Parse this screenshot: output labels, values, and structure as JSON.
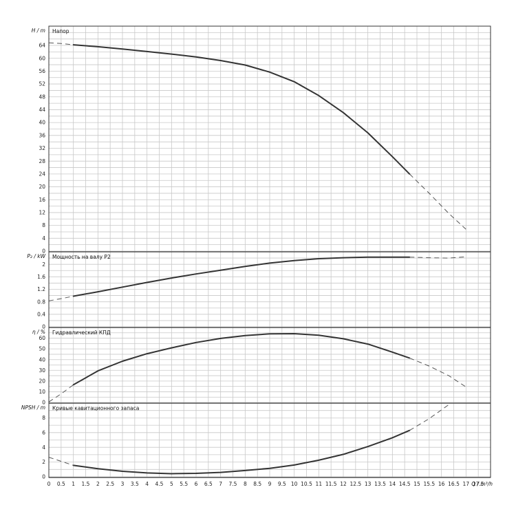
{
  "chart_data": [
    {
      "type": "line",
      "id": "head",
      "title": "Напор",
      "ylabel": "H / m",
      "ylim": [
        0,
        70
      ],
      "yticks": [
        0,
        4,
        8,
        12,
        16,
        20,
        24,
        28,
        32,
        36,
        40,
        44,
        48,
        52,
        56,
        60,
        64
      ],
      "series": [
        {
          "style": "solid",
          "x": [
            1,
            2,
            3,
            4,
            5,
            6,
            7,
            8,
            9,
            10,
            11,
            12,
            13,
            14,
            14.7
          ],
          "y": [
            64.2,
            63.6,
            62.9,
            62.1,
            61.3,
            60.4,
            59.3,
            57.9,
            55.7,
            52.7,
            48.4,
            43.1,
            36.8,
            29.4,
            24
          ]
        },
        {
          "style": "dashed",
          "x": [
            0,
            0.5,
            1
          ],
          "y": [
            64.8,
            64.6,
            64.2
          ]
        },
        {
          "style": "dashed",
          "x": [
            14.7,
            15.5,
            16.3,
            17
          ],
          "y": [
            24,
            18,
            11.7,
            6.8
          ]
        }
      ]
    },
    {
      "type": "line",
      "id": "power",
      "title": "Мощность на валу P2",
      "ylabel": "P₂ / kW",
      "ylim": [
        0,
        2.4
      ],
      "yticks": [
        0,
        0.4,
        0.8,
        1.2,
        1.6,
        2
      ],
      "series": [
        {
          "style": "solid",
          "x": [
            1,
            2,
            3,
            4,
            5,
            6,
            7,
            8,
            9,
            10,
            11,
            12,
            13,
            14,
            14.7
          ],
          "y": [
            0.98,
            1.12,
            1.27,
            1.42,
            1.56,
            1.69,
            1.81,
            1.93,
            2.04,
            2.12,
            2.18,
            2.21,
            2.23,
            2.23,
            2.23
          ]
        },
        {
          "style": "dashed",
          "x": [
            0,
            0.5,
            1
          ],
          "y": [
            0.83,
            0.9,
            0.98
          ]
        },
        {
          "style": "dashed",
          "x": [
            14.7,
            15.5,
            16.3,
            17
          ],
          "y": [
            2.23,
            2.21,
            2.2,
            2.24
          ]
        }
      ]
    },
    {
      "type": "line",
      "id": "efficiency",
      "title": "Гидравлический КПД",
      "ylabel": "η / %",
      "ylim": [
        0,
        70
      ],
      "yticks": [
        0,
        10,
        20,
        30,
        40,
        50,
        60
      ],
      "series": [
        {
          "style": "solid",
          "x": [
            1,
            2,
            3,
            4,
            5,
            6,
            7,
            8,
            9,
            10,
            11,
            12,
            13,
            14,
            14.7
          ],
          "y": [
            16.5,
            29.5,
            38.5,
            45.5,
            51,
            56,
            59.8,
            62.5,
            64,
            64.2,
            62.8,
            59.5,
            54.5,
            47,
            41.5
          ]
        },
        {
          "style": "dashed",
          "x": [
            0,
            0.5,
            1
          ],
          "y": [
            0.5,
            8,
            16.5
          ]
        },
        {
          "style": "dashed",
          "x": [
            14.7,
            15.5,
            16.3,
            17
          ],
          "y": [
            41.5,
            34,
            25,
            14.5
          ]
        }
      ]
    },
    {
      "type": "line",
      "id": "npsh",
      "title": "Кривые кавитационного запаса",
      "ylabel": "NPSH / m",
      "ylim": [
        0,
        10
      ],
      "yticks": [
        0,
        2,
        4,
        6,
        8
      ],
      "series": [
        {
          "style": "solid",
          "x": [
            1,
            2,
            3,
            4,
            5,
            6,
            7,
            8,
            9,
            10,
            11,
            12,
            13,
            14,
            14.7
          ],
          "y": [
            1.55,
            1.1,
            0.75,
            0.52,
            0.42,
            0.47,
            0.6,
            0.85,
            1.15,
            1.6,
            2.25,
            3.05,
            4.1,
            5.3,
            6.3
          ]
        },
        {
          "style": "dashed",
          "x": [
            0,
            0.5,
            1
          ],
          "y": [
            2.65,
            2.1,
            1.55
          ]
        },
        {
          "style": "dashed",
          "x": [
            14.7,
            15.5,
            16.3
          ],
          "y": [
            6.3,
            7.9,
            9.8
          ]
        }
      ]
    }
  ],
  "x_axis": {
    "label": "Q / m³/h",
    "xlim": [
      0,
      18
    ],
    "ticks": [
      "0",
      "0.5",
      "1",
      "1.5",
      "2",
      "2.5",
      "3",
      "3.5",
      "4",
      "4.5",
      "5",
      "5.5",
      "6",
      "6.5",
      "7",
      "7.5",
      "8",
      "8.5",
      "9",
      "9.5",
      "10",
      "10.5",
      "11",
      "11.5",
      "12",
      "12.5",
      "13",
      "13.5",
      "14",
      "14.5",
      "15",
      "15.5",
      "16",
      "16.5",
      "17",
      "17.5"
    ]
  }
}
